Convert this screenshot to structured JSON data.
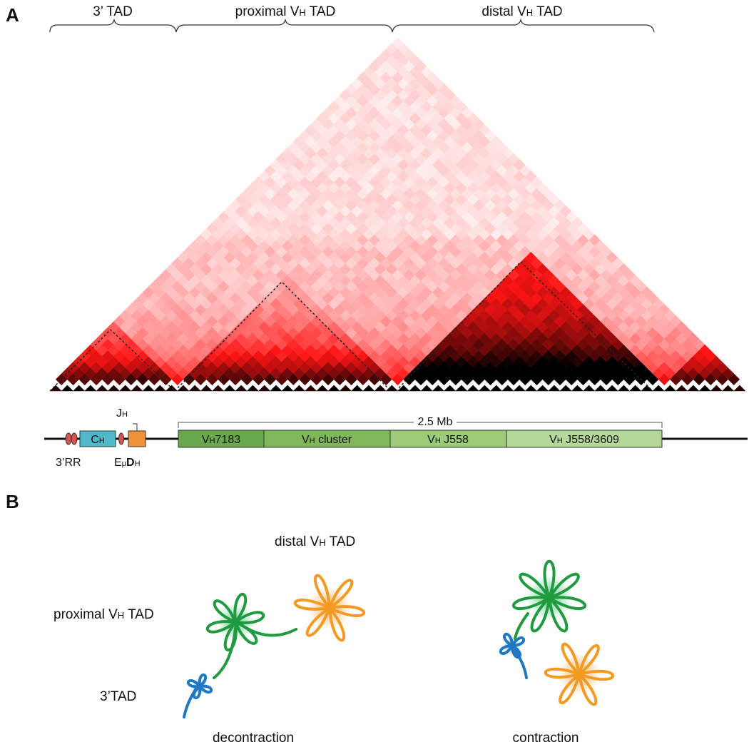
{
  "panel_a": {
    "label": "A",
    "tads": {
      "three_prime": "3’ TAD",
      "proximal": [
        "proximal V",
        "H",
        " TAD"
      ],
      "distal": [
        "distal V",
        "H",
        " TAD"
      ]
    },
    "locus": {
      "jh": [
        "J",
        "H"
      ],
      "ch": [
        "C",
        "H"
      ],
      "rr": "3’RR",
      "emu_dh": [
        "E",
        "μ",
        "D",
        "H"
      ],
      "scale": "2.5 Mb",
      "segments": [
        [
          "V",
          "H",
          "7183"
        ],
        [
          "V",
          "H",
          " cluster"
        ],
        [
          "V",
          "H",
          " J558"
        ],
        [
          "V",
          "H",
          " J558/3609"
        ]
      ]
    }
  },
  "panel_b": {
    "label": "B",
    "distal": [
      "distal V",
      "H",
      " TAD"
    ],
    "proximal": [
      "proximal V",
      "H",
      " TAD"
    ],
    "three_prime": "3’TAD",
    "left_caption": "decontraction",
    "right_caption": "contraction"
  }
}
